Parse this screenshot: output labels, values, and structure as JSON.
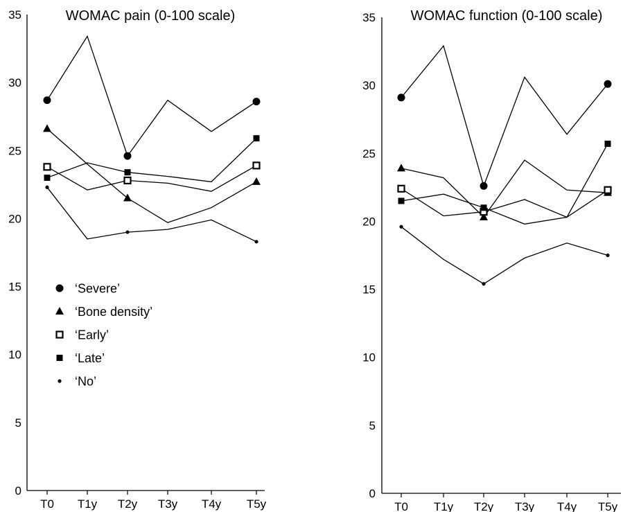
{
  "chart_data": [
    {
      "type": "line",
      "title": "WOMAC pain (0-100 scale)",
      "xlabel": "",
      "ylabel": "",
      "categories": [
        "T0",
        "T1y",
        "T2y",
        "T3y",
        "T4y",
        "T5y"
      ],
      "yticks": [
        "0",
        "5",
        "10",
        "15",
        "20",
        "25",
        "30",
        "35"
      ],
      "ylim": [
        0,
        35
      ],
      "grid": false,
      "legend": {
        "placement": "left-middle",
        "entries": [
          {
            "label": "‘Severe’",
            "marker": "filled-circle"
          },
          {
            "label": "‘Bone density’",
            "marker": "filled-triangle"
          },
          {
            "label": "‘Early’",
            "marker": "open-square"
          },
          {
            "label": "‘Late’",
            "marker": "filled-square"
          },
          {
            "label": "‘No’",
            "marker": "small-dot"
          }
        ]
      },
      "series": [
        {
          "name": "‘Severe’",
          "marker": "filled-circle",
          "values": [
            28.7,
            33.4,
            24.6,
            28.7,
            26.4,
            28.6
          ]
        },
        {
          "name": "‘Bone density’",
          "marker": "filled-triangle",
          "values": [
            26.6,
            24.0,
            21.5,
            19.7,
            20.8,
            22.7
          ]
        },
        {
          "name": "‘Early’",
          "marker": "open-square",
          "values": [
            23.8,
            22.1,
            22.8,
            22.6,
            22.0,
            23.9
          ]
        },
        {
          "name": "‘Late’",
          "marker": "filled-square",
          "values": [
            23.0,
            24.1,
            23.4,
            23.1,
            22.7,
            25.9
          ]
        },
        {
          "name": "‘No’",
          "marker": "small-dot",
          "values": [
            22.3,
            18.5,
            19.0,
            19.2,
            19.9,
            18.3
          ]
        }
      ]
    },
    {
      "type": "line",
      "title": "WOMAC function (0-100 scale)",
      "xlabel": "",
      "ylabel": "",
      "categories": [
        "T0",
        "T1y",
        "T2y",
        "T3y",
        "T4y",
        "T5y"
      ],
      "yticks": [
        "0",
        "5",
        "10",
        "15",
        "20",
        "25",
        "30",
        "35"
      ],
      "ylim": [
        0,
        35
      ],
      "grid": false,
      "series": [
        {
          "name": "‘Severe’",
          "marker": "filled-circle",
          "values": [
            29.1,
            32.9,
            22.6,
            30.6,
            26.4,
            30.1
          ]
        },
        {
          "name": "‘Bone density’",
          "marker": "filled-triangle",
          "values": [
            23.9,
            23.2,
            20.3,
            24.5,
            22.3,
            22.1
          ]
        },
        {
          "name": "‘Early’",
          "marker": "open-square",
          "values": [
            22.4,
            20.4,
            20.7,
            21.6,
            20.3,
            22.3
          ]
        },
        {
          "name": "‘Late’",
          "marker": "filled-square",
          "values": [
            21.5,
            22.0,
            21.0,
            19.8,
            20.3,
            25.7
          ]
        },
        {
          "name": "‘No’",
          "marker": "small-dot",
          "values": [
            19.6,
            17.2,
            15.4,
            17.3,
            18.4,
            17.5
          ]
        }
      ]
    }
  ]
}
